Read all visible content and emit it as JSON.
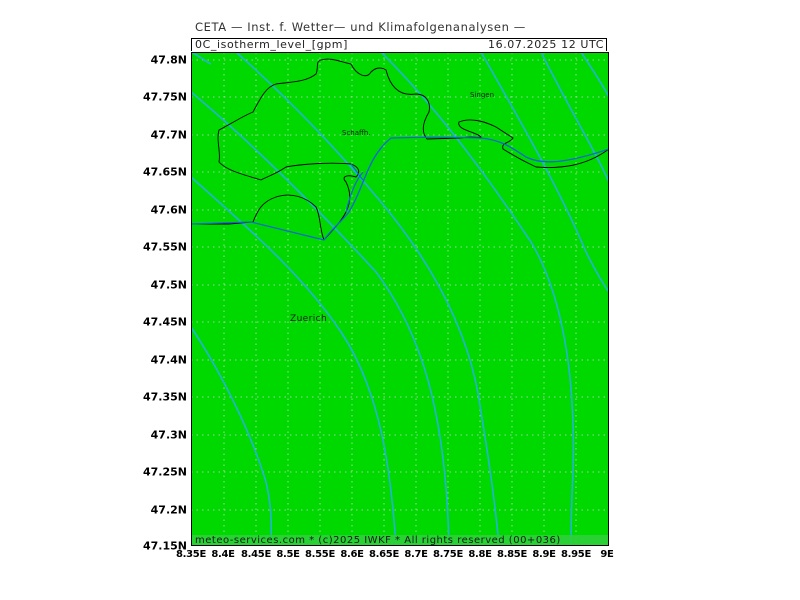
{
  "header": {
    "institute": "CETA — Inst. f. Wetter— und Klimafolgenanalysen —",
    "parameter": "0C_isotherm_level_[gpm]",
    "datetime": "16.07.2025  12 UTC"
  },
  "footer": {
    "copyright": "meteo-services.com * (c)2025 IWKF * All rights reserved (00+036)"
  },
  "map": {
    "background_color": "#00d900",
    "contour_color": "#20b8d8",
    "grid_color": "#c8c8c8",
    "border_color": "#000000",
    "river_color": "#1060d0",
    "lat_range": [
      47.15,
      47.82
    ],
    "lon_range": [
      8.35,
      9.0
    ],
    "lat_ticks": [
      "47.8N",
      "47.75N",
      "47.7N",
      "47.65N",
      "47.6N",
      "47.55N",
      "47.5N",
      "47.45N",
      "47.4N",
      "47.35N",
      "47.3N",
      "47.25N",
      "47.2N",
      "47.15N"
    ],
    "lon_ticks": [
      "8.35E",
      "8.4E",
      "8.45E",
      "8.5E",
      "8.55E",
      "8.6E",
      "8.65E",
      "8.7E",
      "8.75E",
      "8.8E",
      "8.85E",
      "8.9E",
      "8.95E",
      "9E"
    ],
    "cities": [
      {
        "name": "Singen",
        "lon": 8.83,
        "lat": 47.76
      },
      {
        "name": "Schaffh.",
        "lon": 8.63,
        "lat": 47.7
      },
      {
        "name": "Zuerich",
        "lon": 8.53,
        "lat": 47.375
      }
    ]
  }
}
